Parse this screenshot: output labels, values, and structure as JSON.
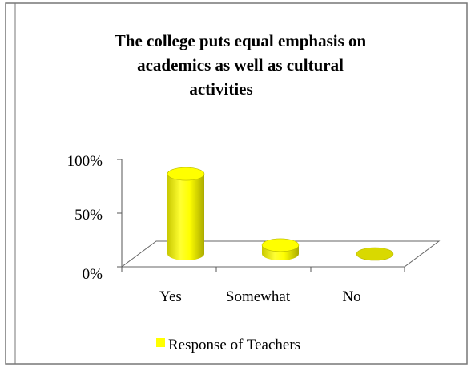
{
  "chart_data": {
    "type": "bar",
    "title_lines": [
      "The college puts equal emphasis on",
      "academics as well as cultural",
      "activities"
    ],
    "categories": [
      "Yes",
      "Somewhat",
      "No"
    ],
    "series": [
      {
        "name": "Response of Teachers",
        "values": [
          90,
          10,
          0
        ]
      }
    ],
    "y_ticks": [
      "100%",
      "50%",
      "0%"
    ],
    "ylim": [
      0,
      100
    ],
    "xlabel": "",
    "ylabel": "",
    "grid": false,
    "legend_position": "bottom",
    "bar_color": "#ffff00",
    "bar_outline_color": "#b8b800",
    "border_color": "#777777"
  }
}
